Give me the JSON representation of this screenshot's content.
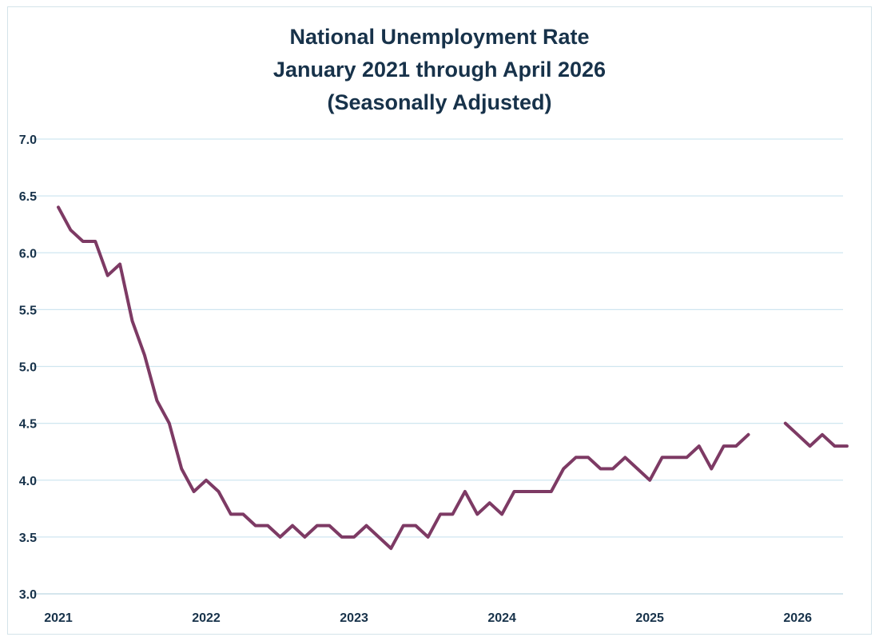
{
  "chart_data": {
    "type": "line",
    "title_lines": [
      "National Unemployment Rate",
      "January 2021 through April 2026",
      "(Seasonally Adjusted)"
    ],
    "xlabel": "",
    "ylabel": "",
    "ylim": [
      3.0,
      7.0
    ],
    "yticks": [
      "3.0",
      "3.5",
      "4.0",
      "4.5",
      "5.0",
      "5.5",
      "6.0",
      "6.5",
      "7.0"
    ],
    "xticks": [
      "2021",
      "2022",
      "2023",
      "2024",
      "2025",
      "2026"
    ],
    "grid": true,
    "legend": "none",
    "line_color": "#7d3a64",
    "grid_color": "#cfe6f0",
    "series": [
      {
        "start": "2021-01",
        "values": [
          6.4,
          6.2,
          6.1,
          6.1,
          5.8,
          5.9,
          5.4,
          5.1,
          4.7,
          4.5,
          4.1,
          3.9,
          4.0,
          3.9,
          3.7,
          3.7,
          3.6,
          3.6,
          3.5,
          3.6,
          3.5,
          3.6,
          3.6,
          3.5,
          3.5,
          3.6,
          3.5,
          3.4,
          3.6,
          3.6,
          3.5,
          3.7,
          3.7,
          3.9,
          3.7,
          3.8,
          3.7,
          3.9,
          3.9,
          3.9,
          3.9,
          4.1,
          4.2,
          4.2,
          4.1,
          4.1,
          4.2,
          4.1,
          4.0,
          4.2,
          4.2,
          4.2,
          4.3,
          4.1,
          4.3,
          4.3,
          4.4,
          null,
          null,
          4.5,
          4.4,
          4.3,
          4.4,
          4.3,
          4.3
        ]
      }
    ]
  }
}
